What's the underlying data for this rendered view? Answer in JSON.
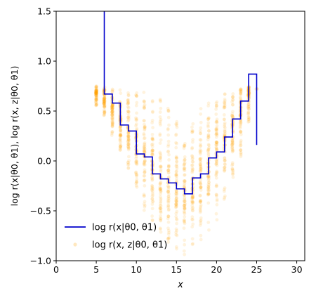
{
  "chart_data": {
    "type": "line",
    "title": "",
    "xlabel": "x",
    "ylabel": "log r(x|θ0, θ1), log r(x, z|θ0, θ1)",
    "xlim": [
      0,
      31
    ],
    "ylim": [
      -1.0,
      1.5
    ],
    "xticks": [
      "0",
      "5",
      "10",
      "15",
      "20",
      "25",
      "30"
    ],
    "yticks": [
      "−1.0",
      "−0.5",
      "0.0",
      "0.5",
      "1.0",
      "1.5"
    ],
    "grid": false,
    "legend_position": "lower-left",
    "legend": {
      "line_label": "log r(x|θ0, θ1)",
      "scatter_label": "log r(x, z|θ0, θ1)"
    },
    "colors": {
      "line": "#0000cc",
      "scatter": "#ffa500"
    },
    "step_series": {
      "name": "log r(x|θ0, θ1)",
      "x": [
        5,
        6,
        7,
        8,
        9,
        10,
        11,
        12,
        13,
        14,
        15,
        16,
        17,
        18,
        19,
        20,
        21,
        22,
        23,
        24,
        25
      ],
      "y": [
        1.6,
        0.67,
        0.58,
        0.36,
        0.3,
        0.07,
        0.04,
        -0.13,
        -0.18,
        -0.22,
        -0.28,
        -0.33,
        -0.17,
        -0.13,
        0.03,
        0.09,
        0.24,
        0.42,
        0.6,
        0.87,
        0.16
      ]
    },
    "scatter_series": {
      "name": "log r(x, z|θ0, θ1)",
      "x": [
        5,
        6,
        7,
        8,
        9,
        10,
        11,
        12,
        13,
        14,
        15,
        16,
        17,
        18,
        19,
        20,
        21,
        22,
        23,
        24,
        25
      ],
      "min": [
        0.55,
        0.45,
        0.25,
        0.1,
        -0.1,
        -0.3,
        -0.5,
        -0.6,
        -0.75,
        -0.85,
        -0.9,
        -0.95,
        -0.9,
        -0.8,
        -0.7,
        -0.6,
        -0.4,
        -0.2,
        0.0,
        0.35,
        0.72
      ],
      "max": [
        0.75,
        0.75,
        0.74,
        0.73,
        0.72,
        0.7,
        0.7,
        0.68,
        0.66,
        0.6,
        0.5,
        0.3,
        0.42,
        0.55,
        0.6,
        0.65,
        0.68,
        0.7,
        0.72,
        0.74,
        0.73
      ],
      "center": [
        0.68,
        0.62,
        0.5,
        0.37,
        0.27,
        0.12,
        0.0,
        -0.1,
        -0.18,
        -0.25,
        -0.3,
        -0.35,
        -0.28,
        -0.15,
        -0.05,
        0.1,
        0.22,
        0.38,
        0.55,
        0.67,
        0.72
      ]
    }
  }
}
